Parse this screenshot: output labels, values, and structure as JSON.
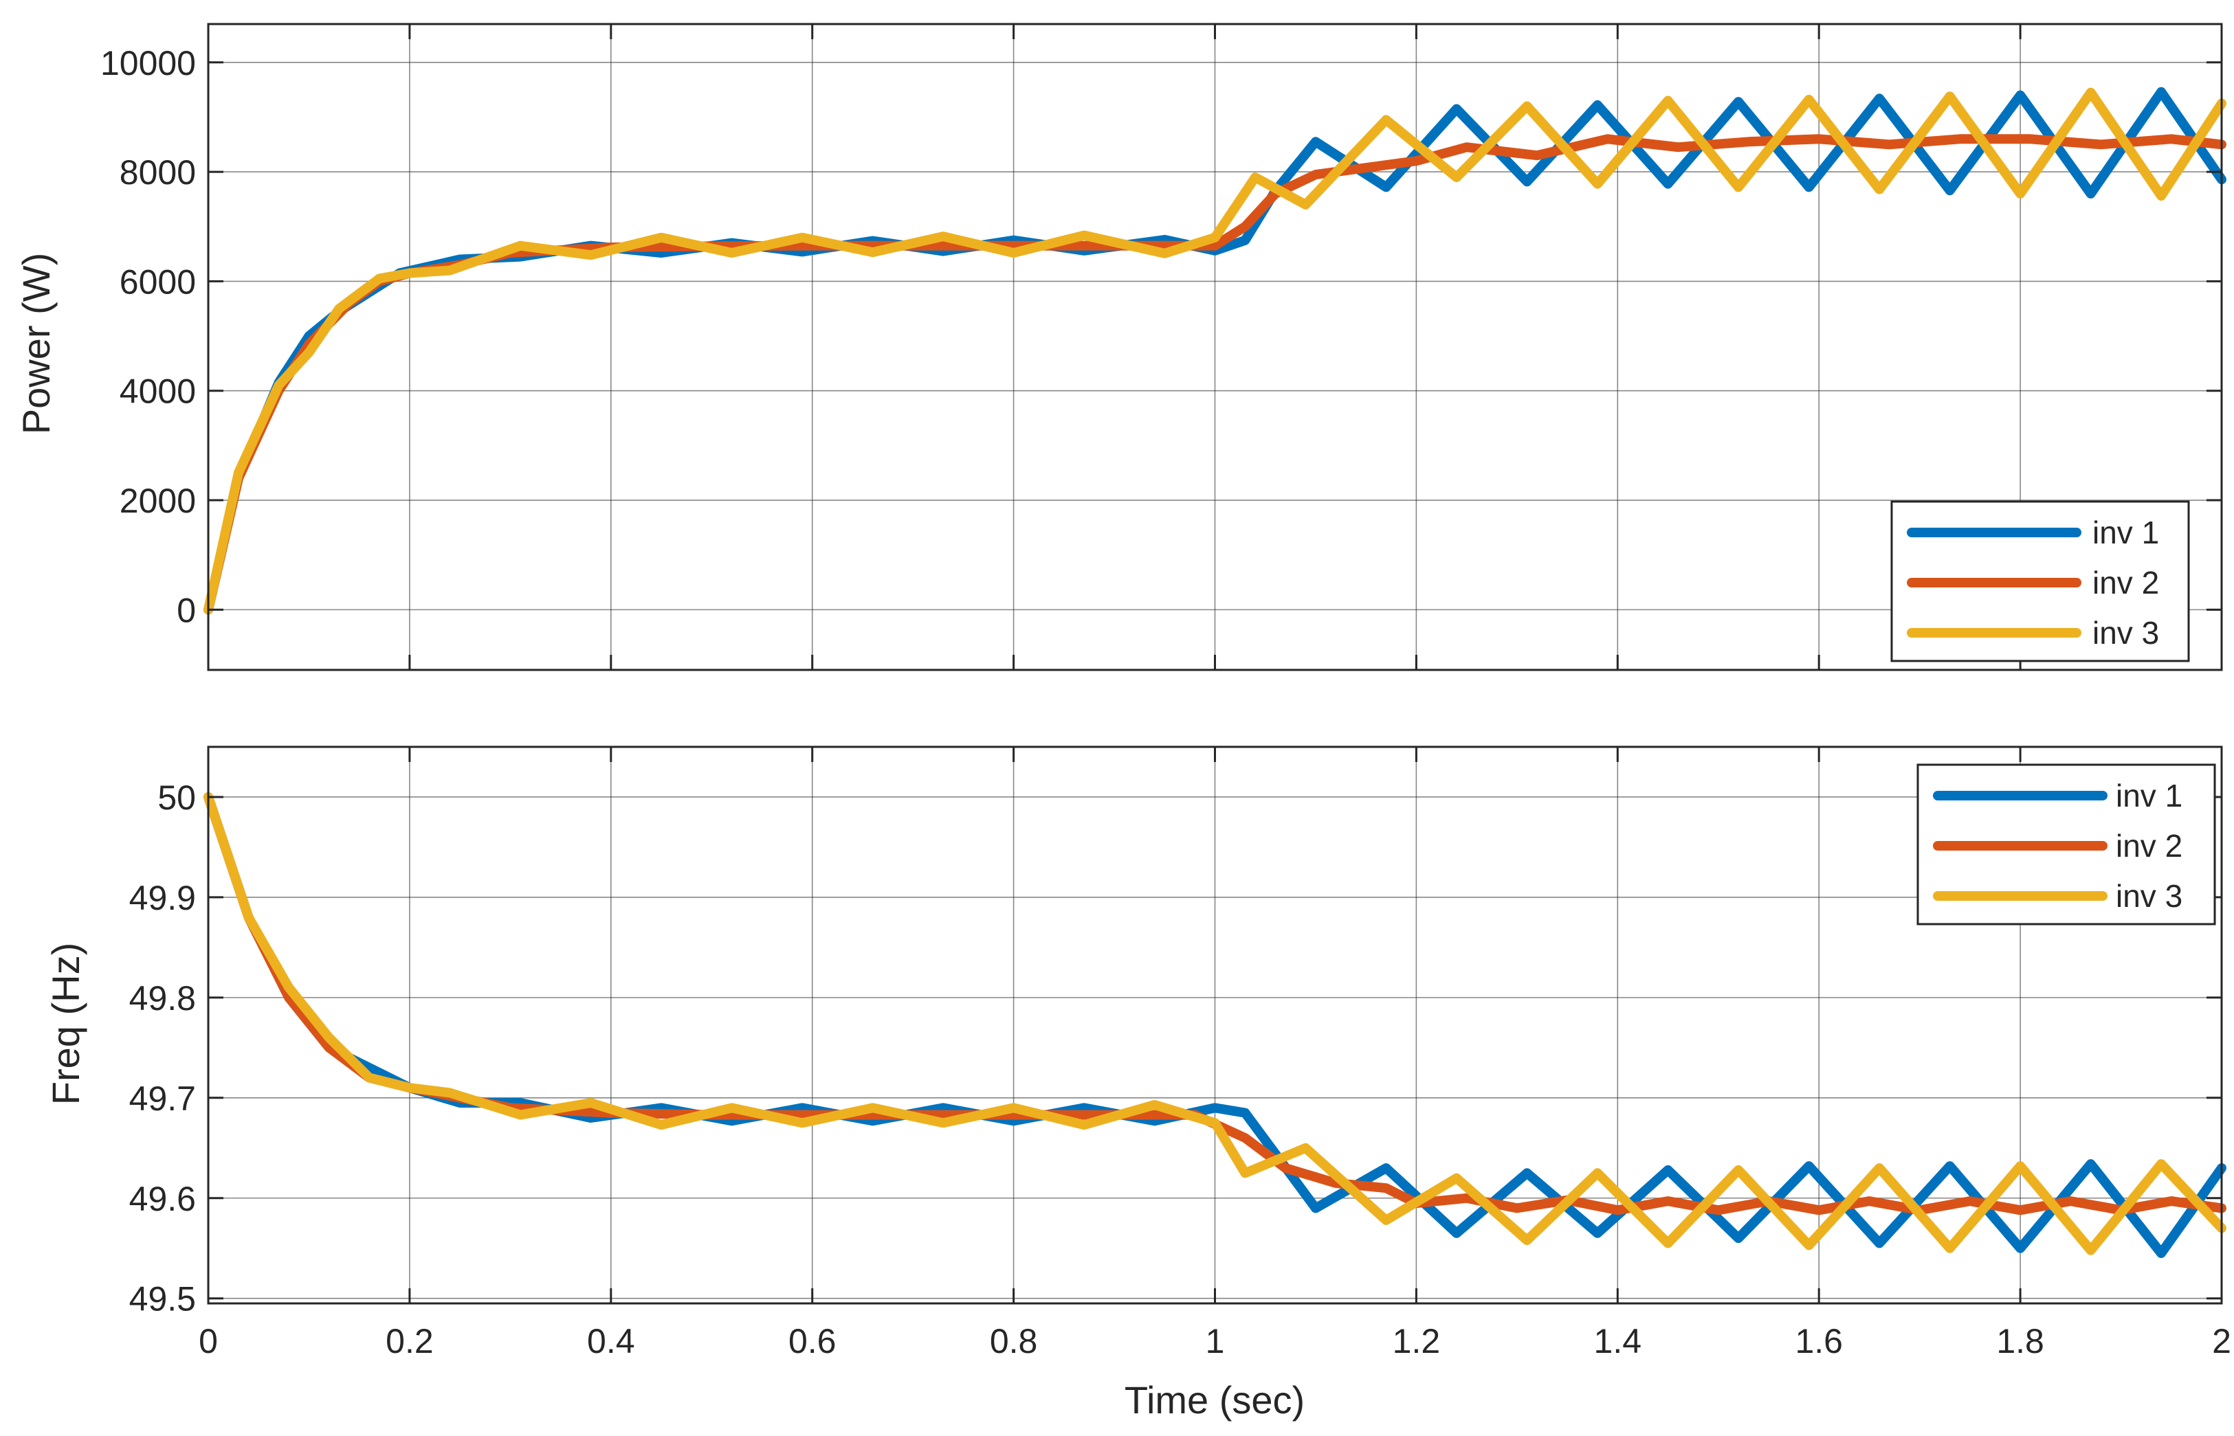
{
  "chart_data": [
    {
      "type": "line",
      "title": "",
      "xlabel": "",
      "ylabel": "Power (W)",
      "xlim": [
        0,
        2
      ],
      "ylim": [
        -1100,
        10700
      ],
      "grid": true,
      "legend_placement": "bottom-right",
      "x_ticks": [
        "0",
        "0.2",
        "0.4",
        "0.6",
        "0.8",
        "1",
        "1.2",
        "1.4",
        "1.6",
        "1.8",
        "2"
      ],
      "y_ticks": [
        "0",
        "2000",
        "4000",
        "6000",
        "8000",
        "10000"
      ],
      "series": [
        {
          "name": "inv 1",
          "color": "#0072BD",
          "points": [
            [
              0,
              0
            ],
            [
              0.03,
              2400
            ],
            [
              0.07,
              4150
            ],
            [
              0.1,
              5000
            ],
            [
              0.13,
              5450
            ],
            [
              0.16,
              5800
            ],
            [
              0.19,
              6150
            ],
            [
              0.25,
              6400
            ],
            [
              0.31,
              6450
            ],
            [
              0.38,
              6650
            ],
            [
              0.45,
              6520
            ],
            [
              0.52,
              6700
            ],
            [
              0.59,
              6540
            ],
            [
              0.66,
              6740
            ],
            [
              0.73,
              6550
            ],
            [
              0.8,
              6750
            ],
            [
              0.87,
              6560
            ],
            [
              0.95,
              6760
            ],
            [
              1,
              6560
            ],
            [
              1.03,
              6750
            ],
            [
              1.06,
              7650
            ],
            [
              1.1,
              8550
            ],
            [
              1.17,
              7720
            ],
            [
              1.24,
              9150
            ],
            [
              1.31,
              7820
            ],
            [
              1.38,
              9220
            ],
            [
              1.45,
              7780
            ],
            [
              1.52,
              9280
            ],
            [
              1.59,
              7720
            ],
            [
              1.66,
              9340
            ],
            [
              1.73,
              7660
            ],
            [
              1.8,
              9400
            ],
            [
              1.87,
              7600
            ],
            [
              1.94,
              9460
            ],
            [
              2,
              7860
            ]
          ]
        },
        {
          "name": "inv 2",
          "color": "#D95319",
          "points": [
            [
              0,
              0
            ],
            [
              0.03,
              2400
            ],
            [
              0.07,
              4000
            ],
            [
              0.1,
              4850
            ],
            [
              0.14,
              5600
            ],
            [
              0.17,
              6000
            ],
            [
              0.2,
              6150
            ],
            [
              0.25,
              6300
            ],
            [
              0.3,
              6520
            ],
            [
              0.4,
              6620
            ],
            [
              0.5,
              6640
            ],
            [
              0.6,
              6650
            ],
            [
              0.7,
              6650
            ],
            [
              0.8,
              6650
            ],
            [
              0.9,
              6650
            ],
            [
              1,
              6650
            ],
            [
              1.03,
              7000
            ],
            [
              1.06,
              7600
            ],
            [
              1.1,
              7950
            ],
            [
              1.2,
              8200
            ],
            [
              1.25,
              8450
            ],
            [
              1.32,
              8300
            ],
            [
              1.39,
              8600
            ],
            [
              1.46,
              8450
            ],
            [
              1.53,
              8550
            ],
            [
              1.6,
              8600
            ],
            [
              1.67,
              8500
            ],
            [
              1.74,
              8600
            ],
            [
              1.81,
              8600
            ],
            [
              1.88,
              8500
            ],
            [
              1.95,
              8600
            ],
            [
              2,
              8500
            ]
          ]
        },
        {
          "name": "inv 3",
          "color": "#EDB120",
          "points": [
            [
              0,
              0
            ],
            [
              0.03,
              2500
            ],
            [
              0.07,
              4100
            ],
            [
              0.1,
              4700
            ],
            [
              0.13,
              5500
            ],
            [
              0.17,
              6050
            ],
            [
              0.2,
              6150
            ],
            [
              0.24,
              6200
            ],
            [
              0.31,
              6650
            ],
            [
              0.38,
              6480
            ],
            [
              0.45,
              6800
            ],
            [
              0.52,
              6520
            ],
            [
              0.59,
              6800
            ],
            [
              0.66,
              6530
            ],
            [
              0.73,
              6820
            ],
            [
              0.8,
              6520
            ],
            [
              0.87,
              6840
            ],
            [
              0.95,
              6510
            ],
            [
              1,
              6800
            ],
            [
              1.04,
              7900
            ],
            [
              1.09,
              7400
            ],
            [
              1.17,
              8950
            ],
            [
              1.24,
              7900
            ],
            [
              1.31,
              9200
            ],
            [
              1.38,
              7780
            ],
            [
              1.45,
              9300
            ],
            [
              1.52,
              7720
            ],
            [
              1.59,
              9320
            ],
            [
              1.66,
              7680
            ],
            [
              1.73,
              9380
            ],
            [
              1.8,
              7600
            ],
            [
              1.87,
              9450
            ],
            [
              1.94,
              7560
            ],
            [
              2,
              9250
            ]
          ]
        }
      ]
    },
    {
      "type": "line",
      "title": "",
      "xlabel": "Time (sec)",
      "ylabel": "Freq (Hz)",
      "xlim": [
        0,
        2
      ],
      "ylim": [
        49.495,
        50.05
      ],
      "grid": true,
      "legend_placement": "top-right",
      "x_ticks": [
        "0",
        "0.2",
        "0.4",
        "0.6",
        "0.8",
        "1",
        "1.2",
        "1.4",
        "1.6",
        "1.8",
        "2"
      ],
      "y_ticks": [
        "49.5",
        "49.6",
        "49.7",
        "49.8",
        "49.9",
        "50"
      ],
      "series": [
        {
          "name": "inv 1",
          "color": "#0072BD",
          "points": [
            [
              0,
              50
            ],
            [
              0.04,
              49.88
            ],
            [
              0.08,
              49.8
            ],
            [
              0.12,
              49.75
            ],
            [
              0.16,
              49.73
            ],
            [
              0.2,
              49.71
            ],
            [
              0.25,
              49.695
            ],
            [
              0.31,
              49.695
            ],
            [
              0.38,
              49.68
            ],
            [
              0.45,
              49.69
            ],
            [
              0.52,
              49.677
            ],
            [
              0.59,
              49.69
            ],
            [
              0.66,
              49.677
            ],
            [
              0.73,
              49.69
            ],
            [
              0.8,
              49.677
            ],
            [
              0.87,
              49.69
            ],
            [
              0.94,
              49.677
            ],
            [
              1,
              49.69
            ],
            [
              1.03,
              49.685
            ],
            [
              1.1,
              49.59
            ],
            [
              1.17,
              49.63
            ],
            [
              1.24,
              49.565
            ],
            [
              1.31,
              49.625
            ],
            [
              1.38,
              49.565
            ],
            [
              1.45,
              49.628
            ],
            [
              1.52,
              49.56
            ],
            [
              1.59,
              49.632
            ],
            [
              1.66,
              49.555
            ],
            [
              1.73,
              49.632
            ],
            [
              1.8,
              49.55
            ],
            [
              1.87,
              49.634
            ],
            [
              1.94,
              49.545
            ],
            [
              2,
              49.63
            ]
          ]
        },
        {
          "name": "inv 2",
          "color": "#D95319",
          "points": [
            [
              0,
              50
            ],
            [
              0.04,
              49.88
            ],
            [
              0.08,
              49.8
            ],
            [
              0.12,
              49.75
            ],
            [
              0.16,
              49.72
            ],
            [
              0.2,
              49.71
            ],
            [
              0.3,
              49.69
            ],
            [
              0.4,
              49.685
            ],
            [
              0.5,
              49.683
            ],
            [
              0.6,
              49.683
            ],
            [
              0.7,
              49.683
            ],
            [
              0.8,
              49.683
            ],
            [
              0.9,
              49.683
            ],
            [
              0.98,
              49.683
            ],
            [
              1.03,
              49.66
            ],
            [
              1.07,
              49.63
            ],
            [
              1.12,
              49.615
            ],
            [
              1.17,
              49.61
            ],
            [
              1.2,
              49.595
            ],
            [
              1.25,
              49.6
            ],
            [
              1.3,
              49.59
            ],
            [
              1.35,
              49.598
            ],
            [
              1.4,
              49.588
            ],
            [
              1.45,
              49.597
            ],
            [
              1.5,
              49.588
            ],
            [
              1.55,
              49.597
            ],
            [
              1.6,
              49.588
            ],
            [
              1.65,
              49.597
            ],
            [
              1.7,
              49.588
            ],
            [
              1.75,
              49.597
            ],
            [
              1.8,
              49.588
            ],
            [
              1.85,
              49.597
            ],
            [
              1.9,
              49.588
            ],
            [
              1.95,
              49.597
            ],
            [
              2,
              49.59
            ]
          ]
        },
        {
          "name": "inv 3",
          "color": "#EDB120",
          "points": [
            [
              0,
              50
            ],
            [
              0.04,
              49.88
            ],
            [
              0.08,
              49.81
            ],
            [
              0.12,
              49.76
            ],
            [
              0.16,
              49.72
            ],
            [
              0.2,
              49.71
            ],
            [
              0.24,
              49.705
            ],
            [
              0.31,
              49.683
            ],
            [
              0.38,
              49.695
            ],
            [
              0.45,
              49.673
            ],
            [
              0.52,
              49.69
            ],
            [
              0.59,
              49.675
            ],
            [
              0.66,
              49.69
            ],
            [
              0.73,
              49.675
            ],
            [
              0.8,
              49.69
            ],
            [
              0.87,
              49.673
            ],
            [
              0.94,
              49.693
            ],
            [
              1,
              49.675
            ],
            [
              1.03,
              49.625
            ],
            [
              1.09,
              49.65
            ],
            [
              1.17,
              49.578
            ],
            [
              1.24,
              49.62
            ],
            [
              1.31,
              49.558
            ],
            [
              1.38,
              49.625
            ],
            [
              1.45,
              49.555
            ],
            [
              1.52,
              49.628
            ],
            [
              1.59,
              49.553
            ],
            [
              1.66,
              49.63
            ],
            [
              1.73,
              49.55
            ],
            [
              1.8,
              49.632
            ],
            [
              1.87,
              49.548
            ],
            [
              1.94,
              49.634
            ],
            [
              2,
              49.57
            ]
          ]
        }
      ]
    }
  ]
}
